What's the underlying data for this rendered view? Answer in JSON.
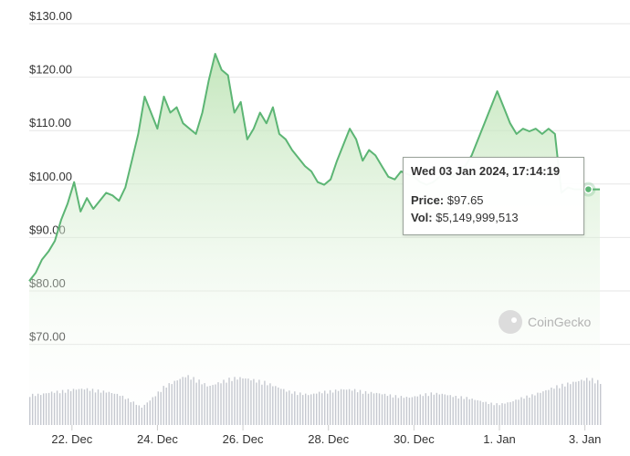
{
  "chart_data": {
    "type": "area",
    "title": "",
    "xlabel": "",
    "ylabel": "",
    "ylim": [
      60,
      130
    ],
    "y_ticks": [
      "$130.00",
      "$120.00",
      "$110.00",
      "$100.00",
      "$90.00",
      "$80.00",
      "$70.00"
    ],
    "y_tick_values": [
      130,
      120,
      110,
      100,
      90,
      80,
      70
    ],
    "x_ticks": [
      "22. Dec",
      "24. Dec",
      "26. Dec",
      "28. Dec",
      "30. Dec",
      "1. Jan",
      "3. Jan"
    ],
    "x_tick_days": [
      1,
      3,
      5,
      7,
      9,
      11,
      13
    ],
    "x_range_days": [
      0.0,
      13.35
    ],
    "grid": true,
    "line_color": "#5cb574",
    "fill_color": "#e8f5e4",
    "volume_color": "#c5c8cf",
    "price": {
      "x": [
        0.0,
        0.15,
        0.3,
        0.45,
        0.6,
        0.75,
        0.9,
        1.05,
        1.2,
        1.35,
        1.5,
        1.65,
        1.8,
        1.95,
        2.1,
        2.25,
        2.4,
        2.55,
        2.7,
        2.85,
        3.0,
        3.15,
        3.3,
        3.45,
        3.6,
        3.75,
        3.9,
        4.05,
        4.2,
        4.35,
        4.5,
        4.65,
        4.8,
        4.95,
        5.1,
        5.25,
        5.4,
        5.55,
        5.7,
        5.85,
        6.0,
        6.15,
        6.3,
        6.45,
        6.6,
        6.75,
        6.9,
        7.05,
        7.2,
        7.35,
        7.5,
        7.65,
        7.8,
        7.95,
        8.1,
        8.25,
        8.4,
        8.55,
        8.7,
        8.85,
        9.0,
        9.15,
        9.3,
        9.45,
        9.6,
        9.75,
        9.9,
        10.05,
        10.2,
        10.35,
        10.5,
        10.65,
        10.8,
        10.95,
        11.1,
        11.25,
        11.4,
        11.55,
        11.7,
        11.85,
        12.0,
        12.15,
        12.3,
        12.45,
        12.6,
        12.75,
        12.9,
        13.05,
        13.2,
        13.35
      ],
      "y": [
        80.5,
        82.0,
        84.5,
        86.0,
        88.0,
        92.0,
        95.0,
        99.0,
        93.5,
        96.0,
        94.0,
        95.5,
        97.0,
        96.5,
        95.5,
        98.0,
        103.0,
        108.0,
        115.0,
        112.0,
        109.0,
        115.0,
        112.0,
        113.0,
        110.0,
        109.0,
        108.0,
        112.0,
        118.0,
        123.0,
        120.0,
        119.0,
        112.0,
        114.0,
        107.0,
        109.0,
        112.0,
        110.0,
        113.0,
        108.0,
        107.0,
        105.0,
        103.5,
        102.0,
        101.0,
        99.0,
        98.5,
        99.5,
        103.0,
        106.0,
        109.0,
        107.0,
        103.0,
        105.0,
        104.0,
        102.0,
        100.0,
        99.5,
        101.0,
        100.5,
        100.0,
        99.0,
        98.5,
        99.0,
        100.0,
        101.0,
        100.0,
        101.5,
        102.0,
        104.0,
        107.0,
        110.0,
        113.0,
        116.0,
        113.0,
        110.0,
        108.0,
        109.0,
        108.5,
        109.0,
        108.0,
        109.0,
        108.0,
        97.0,
        98.0,
        97.65,
        97.65,
        97.65,
        97.65,
        97.65
      ]
    },
    "volume_relative": [
      0.55,
      0.56,
      0.6,
      0.62,
      0.65,
      0.66,
      0.63,
      0.6,
      0.55,
      0.45,
      0.32,
      0.5,
      0.7,
      0.8,
      0.9,
      0.82,
      0.7,
      0.78,
      0.85,
      0.86,
      0.82,
      0.78,
      0.7,
      0.62,
      0.58,
      0.55,
      0.6,
      0.62,
      0.65,
      0.64,
      0.6,
      0.58,
      0.55,
      0.52,
      0.5,
      0.55,
      0.58,
      0.56,
      0.52,
      0.5,
      0.45,
      0.4,
      0.38,
      0.42,
      0.5,
      0.55,
      0.62,
      0.7,
      0.75,
      0.8,
      0.85,
      0.78
    ],
    "hover_point": {
      "x": 13.08,
      "y": 97.65
    },
    "tooltip": {
      "title": "Wed 03 Jan 2024, 17:14:19",
      "price_label": "Price:",
      "price_value": "$97.65",
      "vol_label": "Vol:",
      "vol_value": "$5,149,999,513"
    }
  },
  "watermark": {
    "text": "CoinGecko",
    "icon": "gecko-logo-icon"
  }
}
